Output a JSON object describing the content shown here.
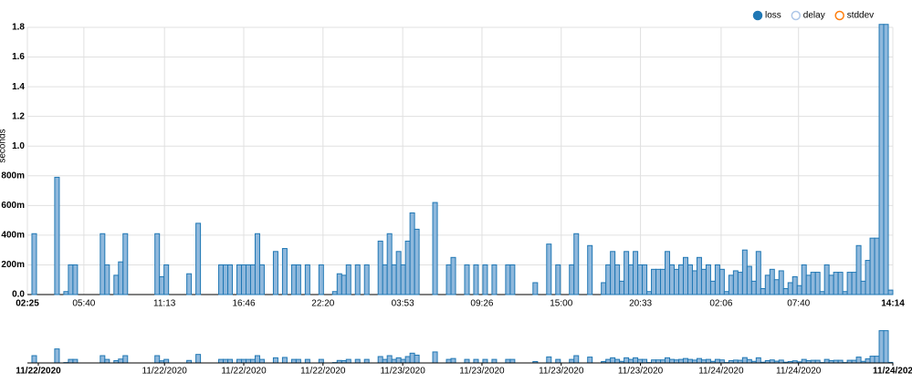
{
  "chart_data": {
    "type": "step-area",
    "y_label": "seconds",
    "series": [
      {
        "name": "loss",
        "color": "#1f77b4",
        "values": [
          0,
          0.41,
          0,
          0,
          0,
          0,
          0.79,
          0,
          0.02,
          0.2,
          0.2,
          0,
          0,
          0,
          0,
          0,
          0.41,
          0.2,
          0,
          0.13,
          0.22,
          0.41,
          0,
          0,
          0,
          0,
          0,
          0,
          0.41,
          0.12,
          0.2,
          0,
          0,
          0,
          0,
          0.14,
          0,
          0.48,
          0,
          0,
          0,
          0,
          0.2,
          0.2,
          0.2,
          0,
          0.2,
          0.2,
          0.2,
          0.2,
          0.41,
          0.2,
          0,
          0,
          0.29,
          0,
          0.31,
          0,
          0.2,
          0.2,
          0,
          0.2,
          0,
          0,
          0.2,
          0,
          0,
          0.02,
          0.14,
          0.13,
          0.2,
          0,
          0.2,
          0,
          0.2,
          0,
          0,
          0.36,
          0.2,
          0.41,
          0.2,
          0.29,
          0.2,
          0.36,
          0.55,
          0.44,
          0,
          0,
          0,
          0.62,
          0,
          0,
          0.2,
          0.25,
          0,
          0,
          0.2,
          0,
          0.2,
          0,
          0.2,
          0,
          0.2,
          0,
          0,
          0.2,
          0.2,
          0,
          0,
          0,
          0,
          0.08,
          0,
          0,
          0.34,
          0,
          0.2,
          0,
          0,
          0.2,
          0.41,
          0,
          0,
          0.33,
          0,
          0,
          0.08,
          0.2,
          0.29,
          0.2,
          0.09,
          0.29,
          0.2,
          0.29,
          0.2,
          0.2,
          0.02,
          0.17,
          0.17,
          0.17,
          0.29,
          0.2,
          0.17,
          0.2,
          0.25,
          0.2,
          0.16,
          0.25,
          0.17,
          0.2,
          0.09,
          0.2,
          0.17,
          0.02,
          0.13,
          0.16,
          0.15,
          0.3,
          0.19,
          0.09,
          0.29,
          0.04,
          0.13,
          0.17,
          0.1,
          0.16,
          0.04,
          0.08,
          0.12,
          0.06,
          0.2,
          0.13,
          0.15,
          0.15,
          0.02,
          0.2,
          0.13,
          0.15,
          0.15,
          0.02,
          0.15,
          0.15,
          0.33,
          0.09,
          0.23,
          0.38,
          0.38,
          1.82,
          1.82,
          0.03
        ]
      }
    ],
    "inactive_series": [
      {
        "name": "delay",
        "color": "#aec7e8"
      },
      {
        "name": "stddev",
        "color": "#ff7f0e"
      }
    ],
    "xlim": [
      0,
      190
    ],
    "xticks": [
      {
        "value": 0,
        "label": "02:25"
      },
      {
        "value": 12.4,
        "label": "05:40"
      },
      {
        "value": 30.1,
        "label": "11:13"
      },
      {
        "value": 47.5,
        "label": "16:46"
      },
      {
        "value": 64.9,
        "label": "22:20"
      },
      {
        "value": 82.4,
        "label": "03:53"
      },
      {
        "value": 99.8,
        "label": "09:26"
      },
      {
        "value": 117.2,
        "label": "15:00"
      },
      {
        "value": 134.6,
        "label": "20:33"
      },
      {
        "value": 152.3,
        "label": "02:06"
      },
      {
        "value": 169.3,
        "label": "07:40"
      },
      {
        "value": 190,
        "label": "14:14"
      }
    ],
    "ylim": [
      0,
      1.8
    ],
    "yticks": [
      {
        "value": 0,
        "label": "0.0"
      },
      {
        "value": 0.2,
        "label": "200m"
      },
      {
        "value": 0.4,
        "label": "400m"
      },
      {
        "value": 0.6,
        "label": "600m"
      },
      {
        "value": 0.8,
        "label": "800m"
      },
      {
        "value": 1.0,
        "label": "1.0"
      },
      1.2,
      1.4,
      1.6,
      1.8
    ],
    "grid": true,
    "legend": "top-right",
    "overview_xticks": [
      {
        "value": 2.4,
        "label": "11/22/2020"
      },
      {
        "value": 30.1,
        "label": "11/22/2020"
      },
      {
        "value": 47.5,
        "label": "11/22/2020"
      },
      {
        "value": 64.9,
        "label": "11/22/2020"
      },
      {
        "value": 82.4,
        "label": "11/23/2020"
      },
      {
        "value": 99.8,
        "label": "11/23/2020"
      },
      {
        "value": 117.2,
        "label": "11/23/2020"
      },
      {
        "value": 134.6,
        "label": "11/23/2020"
      },
      {
        "value": 152.3,
        "label": "11/24/2020"
      },
      {
        "value": 169.3,
        "label": "11/24/2020"
      },
      {
        "value": 190,
        "label": "11/24/202"
      }
    ]
  }
}
